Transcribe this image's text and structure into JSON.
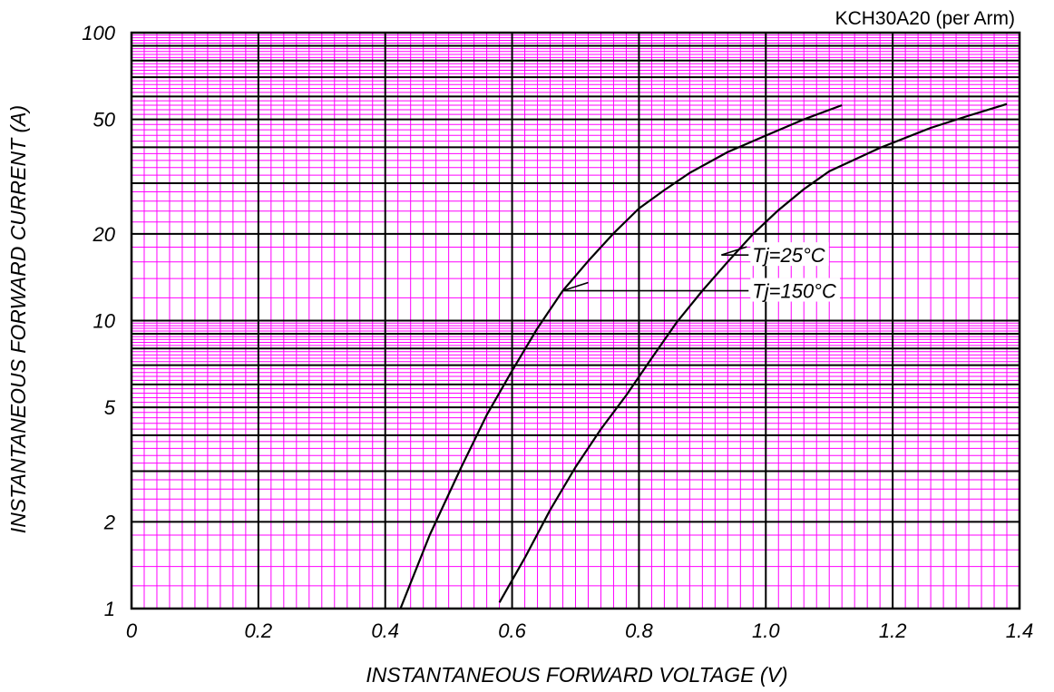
{
  "chart_data": {
    "type": "line",
    "title": "KCH30A20 (per Arm)",
    "xlabel": "INSTANTANEOUS FORWARD VOLTAGE (V)",
    "ylabel": "INSTANTANEOUS FORWARD CURRENT (A)",
    "xlim": [
      0,
      1.4
    ],
    "ylim": [
      1,
      100
    ],
    "yscale": "log",
    "grid": true,
    "colors": {
      "major_grid": "#000000",
      "minor_grid": "#ff00ff",
      "curve": "#000000"
    },
    "x_ticks": [
      {
        "value": 0,
        "label": "0"
      },
      {
        "value": 0.2,
        "label": "0.2"
      },
      {
        "value": 0.4,
        "label": "0.4"
      },
      {
        "value": 0.6,
        "label": "0.6"
      },
      {
        "value": 0.8,
        "label": "0.8"
      },
      {
        "value": 1.0,
        "label": "1.0"
      },
      {
        "value": 1.2,
        "label": "1.2"
      },
      {
        "value": 1.4,
        "label": "1.4"
      }
    ],
    "y_ticks": [
      {
        "value": 1,
        "label": "1"
      },
      {
        "value": 2,
        "label": "2"
      },
      {
        "value": 5,
        "label": "5"
      },
      {
        "value": 10,
        "label": "10"
      },
      {
        "value": 20,
        "label": "20"
      },
      {
        "value": 50,
        "label": "50"
      },
      {
        "value": 100,
        "label": "100"
      }
    ],
    "series": [
      {
        "name": "",
        "x": [
          0.424,
          0.47,
          0.52,
          0.56,
          0.6,
          0.64,
          0.68,
          0.72,
          0.76,
          0.8,
          0.84,
          0.88,
          0.94,
          1.0,
          1.06,
          1.12
        ],
        "y": [
          1.0,
          1.8,
          3.1,
          4.7,
          6.7,
          9.4,
          12.7,
          16.1,
          20.1,
          24.5,
          28.4,
          32.6,
          38.5,
          43.9,
          50.0,
          56.0
        ]
      },
      {
        "name": "",
        "x": [
          0.58,
          0.62,
          0.66,
          0.7,
          0.74,
          0.78,
          0.82,
          0.86,
          0.9,
          0.94,
          0.98,
          1.02,
          1.06,
          1.1,
          1.18,
          1.26,
          1.32,
          1.38
        ],
        "y": [
          1.05,
          1.5,
          2.2,
          3.1,
          4.2,
          5.5,
          7.4,
          9.9,
          12.7,
          16.0,
          20.0,
          24.2,
          28.6,
          33.0,
          39.8,
          46.7,
          51.5,
          56.5
        ]
      }
    ],
    "annotations": [
      {
        "text": "Tj=25°C",
        "label_at": [
          0.97,
          16.9
        ],
        "arrow_to": [
          0.93,
          16.9
        ]
      },
      {
        "text": "Tj=150°C",
        "label_at": [
          0.97,
          12.7
        ],
        "arrow_to": [
          0.68,
          12.7
        ]
      }
    ]
  }
}
